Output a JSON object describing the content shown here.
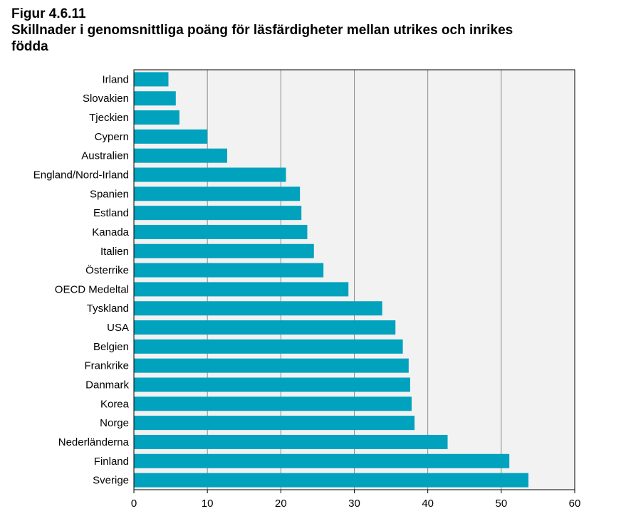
{
  "figure": {
    "label": "Figur 4.6.11",
    "title": "Skillnader i genomsnittliga poäng för läsfärdigheter mellan utrikes och inrikes födda"
  },
  "chart_data": {
    "type": "bar",
    "orientation": "horizontal",
    "categories": [
      "Irland",
      "Slovakien",
      "Tjeckien",
      "Cypern",
      "Australien",
      "England/Nord-Irland",
      "Spanien",
      "Estland",
      "Kanada",
      "Italien",
      "Österrike",
      "OECD Medeltal",
      "Tyskland",
      "USA",
      "Belgien",
      "Frankrike",
      "Danmark",
      "Korea",
      "Norge",
      "Nederländerna",
      "Finland",
      "Sverige"
    ],
    "values": [
      4.7,
      5.7,
      6.2,
      10.0,
      12.7,
      20.7,
      22.6,
      22.8,
      23.6,
      24.5,
      25.8,
      29.2,
      33.8,
      35.6,
      36.6,
      37.4,
      37.6,
      37.8,
      38.2,
      42.7,
      51.1,
      53.7
    ],
    "xlim": [
      0,
      60
    ],
    "xticks": [
      0,
      10,
      20,
      30,
      40,
      50,
      60
    ],
    "grid": true,
    "colors": {
      "bar": "#00a2bd",
      "plot_bg": "#f2f2f2",
      "grid": "#8c8c8c"
    }
  }
}
